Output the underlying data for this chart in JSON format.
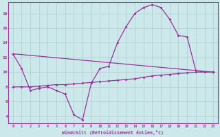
{
  "xlabel": "Windchill (Refroidissement éolien,°C)",
  "bg_color": "#cce8ea",
  "grid_color": "#aacccc",
  "line_color": "#993399",
  "spine_color": "#993399",
  "xlim": [
    -0.5,
    23.5
  ],
  "ylim": [
    3.0,
    19.5
  ],
  "yticks": [
    4,
    6,
    8,
    10,
    12,
    14,
    16,
    18
  ],
  "xticks": [
    0,
    1,
    2,
    3,
    4,
    5,
    6,
    7,
    8,
    9,
    10,
    11,
    12,
    13,
    14,
    15,
    16,
    17,
    18,
    19,
    20,
    21,
    22,
    23
  ],
  "curve1_x": [
    0,
    1,
    2,
    3,
    4,
    5,
    6,
    7,
    8,
    9,
    10,
    11,
    12,
    13,
    14,
    15,
    16,
    17,
    18,
    19,
    20,
    21,
    22,
    23
  ],
  "curve1_y": [
    12.5,
    10.5,
    7.5,
    7.8,
    8.0,
    7.5,
    7.0,
    4.2,
    3.5,
    8.5,
    10.5,
    10.8,
    14.0,
    16.2,
    18.0,
    18.8,
    19.2,
    18.8,
    17.2,
    15.0,
    14.8,
    10.2,
    10.0,
    10.0
  ],
  "curve2_x": [
    0,
    1,
    2,
    3,
    4,
    5,
    6,
    7,
    8,
    9,
    10,
    11,
    12,
    13,
    14,
    15,
    16,
    17,
    18,
    19,
    20,
    21,
    22,
    23
  ],
  "curve2_y": [
    8.0,
    8.0,
    8.0,
    8.1,
    8.2,
    8.3,
    8.3,
    8.4,
    8.5,
    8.6,
    8.7,
    8.8,
    8.9,
    9.0,
    9.1,
    9.3,
    9.5,
    9.6,
    9.7,
    9.8,
    9.9,
    10.0,
    10.0,
    10.0
  ],
  "curve3_x": [
    0,
    23
  ],
  "curve3_y": [
    12.5,
    10.0
  ]
}
